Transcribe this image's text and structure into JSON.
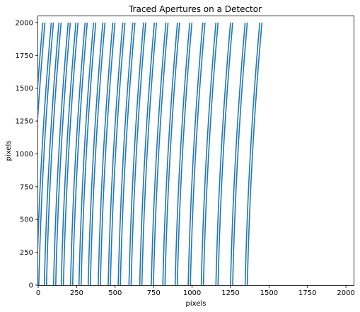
{
  "chart_data": {
    "type": "line",
    "title": "Traced Apertures on a Detector",
    "xlabel": "pixels",
    "ylabel": "pixels",
    "xlim": [
      0,
      2050
    ],
    "ylim": [
      0,
      2048
    ],
    "x_ticks": [
      0,
      250,
      500,
      750,
      1000,
      1250,
      1500,
      1750,
      2000
    ],
    "y_ticks": [
      0,
      250,
      500,
      750,
      1000,
      1250,
      1500,
      1750,
      2000
    ],
    "grid": false,
    "legend": "none",
    "series_color": "#1f77b4",
    "curve_shape": "x = x_at_y0 + a*(y/2000) + b*(y/2000)^2",
    "series": [
      {
        "x_at_y0": -65,
        "y_start": 1170,
        "y_end": 2000
      },
      {
        "x_at_y0": -10,
        "y_start": 0,
        "y_end": 2000
      },
      {
        "x_at_y0": 40,
        "y_start": 0,
        "y_end": 2000
      },
      {
        "x_at_y0": 100,
        "y_start": 0,
        "y_end": 2000
      },
      {
        "x_at_y0": 150,
        "y_start": 0,
        "y_end": 2000
      },
      {
        "x_at_y0": 210,
        "y_start": 0,
        "y_end": 2000
      },
      {
        "x_at_y0": 265,
        "y_start": 0,
        "y_end": 2000
      },
      {
        "x_at_y0": 325,
        "y_start": 0,
        "y_end": 2000
      },
      {
        "x_at_y0": 390,
        "y_start": 0,
        "y_end": 2000
      },
      {
        "x_at_y0": 455,
        "y_start": 0,
        "y_end": 2000
      },
      {
        "x_at_y0": 520,
        "y_start": 0,
        "y_end": 2000
      },
      {
        "x_at_y0": 590,
        "y_start": 0,
        "y_end": 2000
      },
      {
        "x_at_y0": 660,
        "y_start": 0,
        "y_end": 2000
      },
      {
        "x_at_y0": 735,
        "y_start": 0,
        "y_end": 2000
      },
      {
        "x_at_y0": 810,
        "y_start": 0,
        "y_end": 2000
      },
      {
        "x_at_y0": 890,
        "y_start": 0,
        "y_end": 2000
      },
      {
        "x_at_y0": 975,
        "y_start": 0,
        "y_end": 2000
      },
      {
        "x_at_y0": 1060,
        "y_start": 0,
        "y_end": 2000
      },
      {
        "x_at_y0": 1155,
        "y_start": 0,
        "y_end": 2000
      },
      {
        "x_at_y0": 1250,
        "y_start": 0,
        "y_end": 2000
      },
      {
        "x_at_y0": 1345,
        "y_start": 0,
        "y_end": 2000
      }
    ],
    "curve_coefficients": {
      "a": 40,
      "b": 55
    },
    "band_offset": 14
  }
}
